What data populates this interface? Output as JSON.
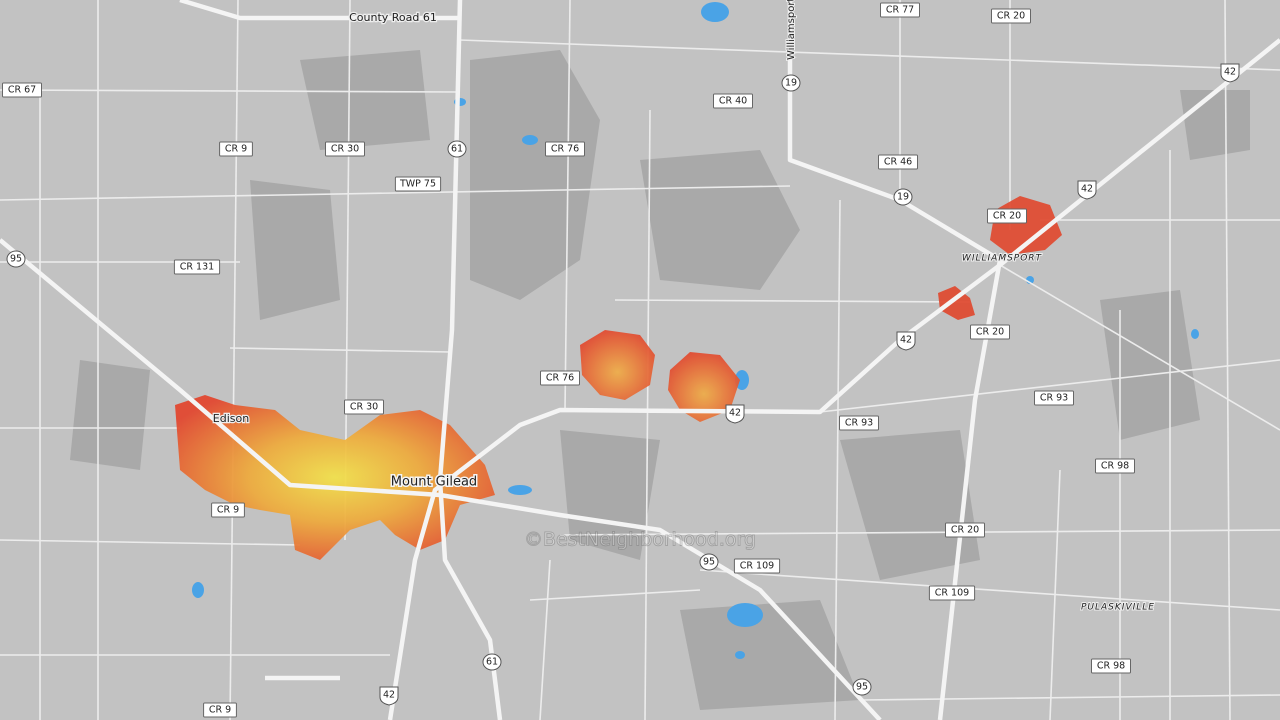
{
  "labels": [
    "County Road 61",
    "CR 77",
    "CR 20",
    "42",
    "CR 67",
    "CR 40",
    "19",
    "Williamsport",
    "CR 9",
    "CR 30",
    "61",
    "CR 76",
    "TWP 75",
    "CR 46",
    "19",
    "42",
    "CR 20",
    "WILLIAMSPORT",
    "95",
    "CR 131",
    "CR 20",
    "42",
    "CR 76",
    "CR 93",
    "CR 30",
    "Edison",
    "42",
    "CR 93",
    "CR 98",
    "Mount Gilead",
    "CR 9",
    "CR 20",
    "95",
    "CR 109",
    "©BestNeighborhood.org",
    "CR 109",
    "PULASKIVILLE",
    "61",
    "CR 98",
    "95",
    "42",
    "CR 9"
  ]
}
